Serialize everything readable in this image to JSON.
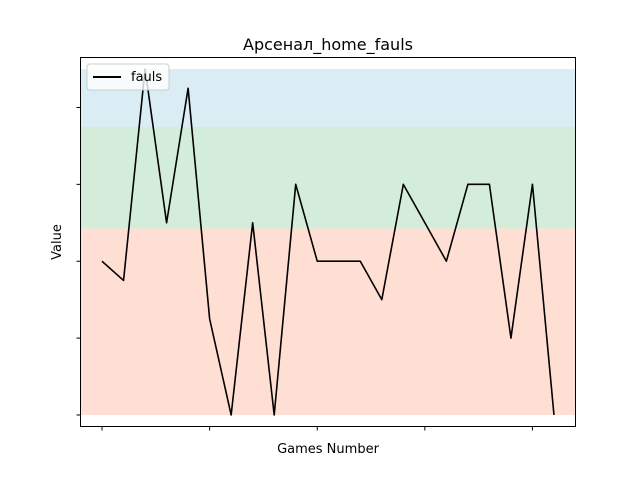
{
  "chart_data": {
    "type": "line",
    "title": "Арсенал_home_fauls",
    "xlabel": "Games Number",
    "ylabel": "Value",
    "x": [
      0,
      1,
      2,
      3,
      4,
      5,
      6,
      7,
      8,
      9,
      10,
      11,
      12,
      13,
      14,
      15,
      16,
      17,
      18,
      19,
      20,
      21
    ],
    "series": [
      {
        "name": "fauls",
        "color": "#000000",
        "values": [
          8,
          7.5,
          13,
          9,
          12.5,
          6.5,
          4,
          9,
          4,
          10,
          8,
          8,
          8,
          7,
          10,
          9,
          8,
          10,
          10,
          6,
          10,
          4
        ]
      }
    ],
    "ylim": [
      3.7,
      13.3
    ],
    "xlim": [
      -1,
      22
    ],
    "x_ticks": [
      0,
      5,
      10,
      15,
      20
    ],
    "y_ticks": [
      4,
      6,
      8,
      10,
      12
    ],
    "tick_labels_visible": false,
    "bands": [
      {
        "from": 4,
        "to": 8.85,
        "color": "#ffb8a0"
      },
      {
        "from": 8.85,
        "to": 11.5,
        "color": "#9fd6b0"
      },
      {
        "from": 11.5,
        "to": 13,
        "color": "#add8e6"
      }
    ],
    "grid": false,
    "legend_position": "top-left"
  }
}
